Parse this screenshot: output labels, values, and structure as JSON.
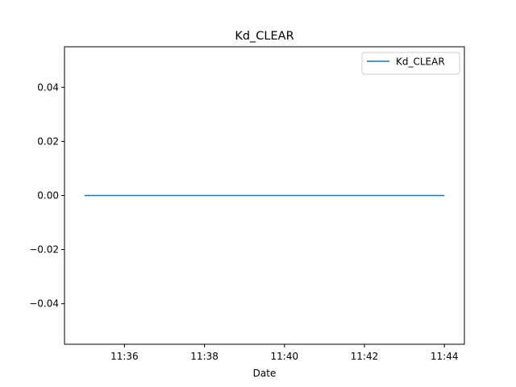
{
  "chart_data": {
    "type": "line",
    "title": "Kd_CLEAR",
    "xlabel": "Date",
    "ylabel": "",
    "x": [
      "11:35",
      "11:44"
    ],
    "x_unit": "time",
    "xlim": [
      "11:34.5",
      "11:44.5"
    ],
    "xticks": [
      "11:36",
      "11:38",
      "11:40",
      "11:42",
      "11:44"
    ],
    "ylim": [
      -0.055,
      0.055
    ],
    "yticks": [
      "-0.04",
      "-0.02",
      "0.00",
      "0.02",
      "0.04"
    ],
    "ytick_labels": [
      "−0.04",
      "−0.02",
      "0.00",
      "0.02",
      "0.04"
    ],
    "series": [
      {
        "name": "Kd_CLEAR",
        "values": [
          0.0,
          0.0
        ],
        "color": "#1f77b4"
      }
    ],
    "grid": false,
    "legend_position": "top-right"
  }
}
